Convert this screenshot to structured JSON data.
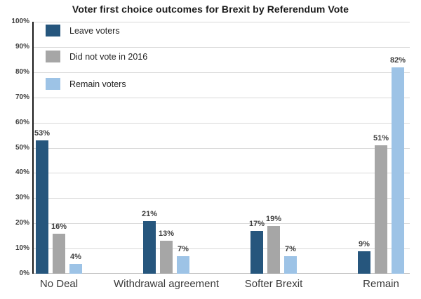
{
  "chart": {
    "title": "Voter first choice outcomes for Brexit by Referendum Vote"
  },
  "chart_data": {
    "type": "bar",
    "title": "Voter first choice outcomes for Brexit by Referendum Vote",
    "categories": [
      "No Deal",
      "Withdrawal agreement",
      "Softer Brexit",
      "Remain"
    ],
    "series": [
      {
        "name": "Leave voters",
        "color": "#26567D",
        "values": [
          53,
          21,
          17,
          9
        ]
      },
      {
        "name": "Did not vote in 2016",
        "color": "#A6A6A6",
        "values": [
          16,
          13,
          19,
          51
        ]
      },
      {
        "name": "Remain voters",
        "color": "#9DC3E6",
        "values": [
          4,
          7,
          7,
          82
        ]
      }
    ],
    "data_labels": [
      "53%",
      "21%",
      "17%",
      "9%",
      "16%",
      "13%",
      "19%",
      "51%",
      "4%",
      "7%",
      "7%",
      "82%"
    ],
    "ytick_labels": [
      "0%",
      "10%",
      "20%",
      "30%",
      "40%",
      "50%",
      "60%",
      "70%",
      "80%",
      "90%",
      "100%"
    ],
    "xlabel": "",
    "ylabel": "",
    "ylim": [
      0,
      100
    ],
    "ytick_step": 10,
    "grid": true,
    "legend_position": "top-left-inside",
    "colors": {
      "gridline": "#D9D9D9",
      "baseline": "#BFBFBF",
      "axis_line": "#1A1A1A",
      "label_text": "#404040",
      "title_text": "#1A1A1A"
    }
  }
}
